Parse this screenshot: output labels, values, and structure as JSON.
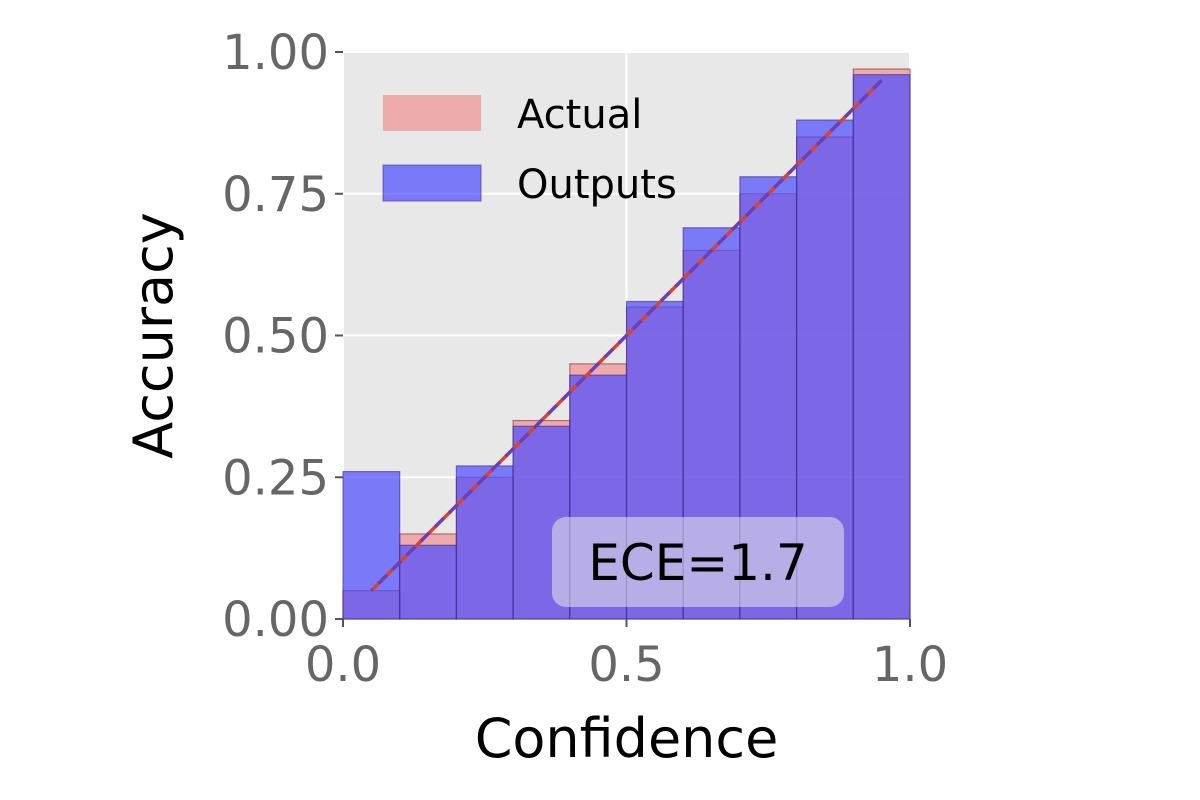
{
  "chart_data": {
    "type": "bar",
    "title": "",
    "xlabel": "Confidence",
    "ylabel": "Accuracy",
    "xlim": [
      0,
      1
    ],
    "ylim": [
      0,
      1
    ],
    "grid": true,
    "legend_placement": "upper-left",
    "bins": [
      0.0,
      0.1,
      0.2,
      0.3,
      0.4,
      0.5,
      0.6,
      0.7,
      0.8,
      0.9
    ],
    "bin_width": 0.1,
    "series": [
      {
        "name": "Actual",
        "color": "#f08080",
        "values": [
          0.05,
          0.15,
          0.25,
          0.35,
          0.45,
          0.55,
          0.65,
          0.75,
          0.85,
          0.97
        ]
      },
      {
        "name": "Outputs",
        "color": "#4b4bff",
        "values": [
          0.26,
          0.13,
          0.27,
          0.34,
          0.43,
          0.56,
          0.69,
          0.78,
          0.88,
          0.96
        ]
      }
    ],
    "diagonal": {
      "x": [
        0.05,
        0.95
      ],
      "y": [
        0.05,
        0.95
      ]
    },
    "xticks": [
      "0.0",
      "0.5",
      "1.0"
    ],
    "xtick_values": [
      0,
      0.5,
      1
    ],
    "yticks": [
      "0.00",
      "0.25",
      "0.50",
      "0.75",
      "1.00"
    ],
    "ytick_values": [
      0,
      0.25,
      0.5,
      0.75,
      1
    ],
    "annotation": "ECE=1.7",
    "colors": {
      "background": "#e8e8e8",
      "grid": "#ffffff",
      "diagonal_red": "#d9432f",
      "diagonal_purple": "#6a3fb5",
      "overlap": "#7a4fd6"
    }
  }
}
